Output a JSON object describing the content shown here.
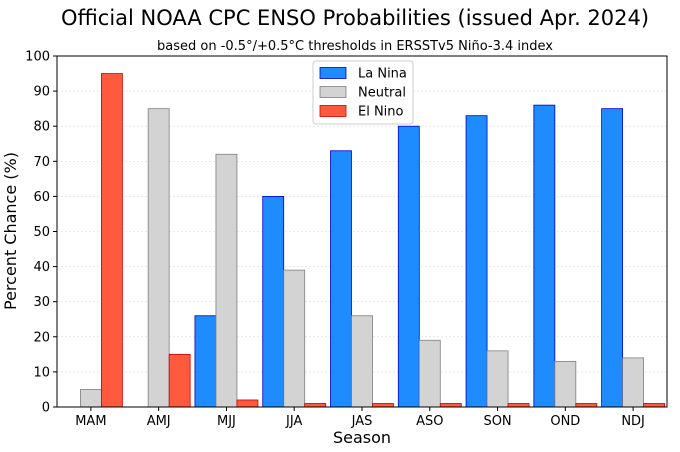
{
  "chart_data": {
    "type": "bar",
    "title": "Official NOAA CPC ENSO Probabilities (issued Apr. 2024)",
    "subtitle": "based on -0.5°/+0.5°C thresholds in ERSSTv5 Niño-3.4 index",
    "xlabel": "Season",
    "ylabel": "Percent Chance (%)",
    "ylim": [
      0,
      100
    ],
    "yticks": [
      "0",
      "10",
      "20",
      "30",
      "40",
      "50",
      "60",
      "70",
      "80",
      "90",
      "100"
    ],
    "categories": [
      "MAM",
      "AMJ",
      "MJJ",
      "JJA",
      "JAS",
      "ASO",
      "SON",
      "OND",
      "NDJ"
    ],
    "grid": "horizontal",
    "legend_position": "top-center",
    "series": [
      {
        "name": "La Nina",
        "color": "#1e8cff",
        "edge": "#0000cc",
        "values": [
          0,
          0,
          26,
          60,
          73,
          80,
          83,
          86,
          85
        ]
      },
      {
        "name": "Neutral",
        "color": "#d3d3d3",
        "edge": "#7f7f7f",
        "values": [
          5,
          85,
          72,
          39,
          26,
          19,
          16,
          13,
          14
        ]
      },
      {
        "name": "El Nino",
        "color": "#ff5a3d",
        "edge": "#cc0000",
        "values": [
          95,
          15,
          2,
          1,
          1,
          1,
          1,
          1,
          1
        ]
      }
    ]
  }
}
